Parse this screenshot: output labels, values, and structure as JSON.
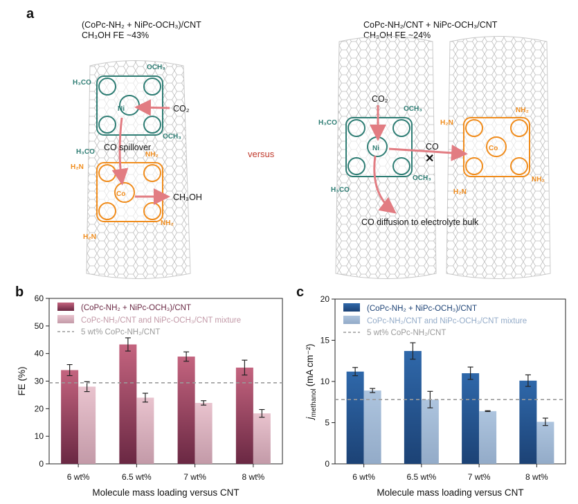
{
  "panel_a": {
    "letter": "a",
    "left_title": "(CoPc-NH₂ + NiPc-OCH₃)/CNT",
    "left_fe": "CH₃OH FE ~43%",
    "left_co2": "CO₂",
    "left_spillover": "CO spillover",
    "left_product": "CH₃OH",
    "versus": "versus",
    "right_title": "CoPc-NH₂/CNT + NiPc-OCH₃/CNT",
    "right_fe": "CH₃OH FE ~24%",
    "right_co2": "CO₂",
    "right_co": "CO",
    "right_diffusion": "CO diffusion to electrolyte bulk",
    "labels": {
      "ni": "Ni",
      "co": "Co",
      "och3": "OCH₃",
      "h3co": "H₃CO",
      "nh2": "NH₂",
      "h2n": "H₂N",
      "n": "N"
    },
    "colors": {
      "ni_molecule": "#2e7d74",
      "co_molecule": "#f08c1c",
      "arrow": "#e27c82",
      "versus": "#c0392b",
      "cnt": "#b8b8b8"
    }
  },
  "chart_data": [
    {
      "panel": "b",
      "type": "bar",
      "title": "",
      "categories": [
        "6 wt%",
        "6.5 wt%",
        "7 wt%",
        "8 wt%"
      ],
      "xlabel": "Molecule mass loading versus CNT",
      "ylabel": "FE (%)",
      "ylim": [
        0,
        60
      ],
      "yticks": [
        0,
        10,
        20,
        30,
        40,
        50,
        60
      ],
      "legend_position": "top-left",
      "series": [
        {
          "name": "(CoPc-NH₂ + NiPc-OCH₃)/CNT",
          "values": [
            34.0,
            43.3,
            38.9,
            34.9
          ],
          "errors": [
            2.0,
            2.4,
            1.7,
            2.7
          ],
          "color_top": "#c4647f",
          "color_bottom": "#6a2843"
        },
        {
          "name": "CoPc-NH₂/CNT and NiPc-OCH₃/CNT mixture",
          "values": [
            28.0,
            24.0,
            22.1,
            18.3
          ],
          "errors": [
            1.8,
            1.6,
            0.8,
            1.4
          ],
          "color_top": "#e9c3ce",
          "color_bottom": "#c39aa8"
        }
      ],
      "reference_line": {
        "name": "5 wt% CoPc-NH₂/CNT",
        "value": 29.4,
        "color": "#9a9a9a"
      }
    },
    {
      "panel": "c",
      "type": "bar",
      "title": "",
      "categories": [
        "6 wt%",
        "6.5 wt%",
        "7 wt%",
        "8 wt%"
      ],
      "xlabel": "Molecule mass loading versus CNT",
      "ylabel": "j_methanol (mA cm⁻²)",
      "ylabel_main": "j",
      "ylabel_sub": "methanol",
      "ylabel_unit": "(mA cm⁻²)",
      "ylim": [
        0,
        20
      ],
      "yticks": [
        0,
        5,
        10,
        15,
        20
      ],
      "legend_position": "top-left",
      "series": [
        {
          "name": "(CoPc-NH₂ + NiPc-OCH₃)/CNT",
          "values": [
            11.2,
            13.7,
            11.0,
            10.1
          ],
          "errors": [
            0.5,
            1.0,
            0.75,
            0.7
          ],
          "color_top": "#2f68aa",
          "color_bottom": "#1c4275"
        },
        {
          "name": "CoPc-NH₂/CNT and NiPc-OCH₃/CNT mixture",
          "values": [
            8.9,
            7.8,
            6.4,
            5.1
          ],
          "errors": [
            0.25,
            1.0,
            0.05,
            0.45
          ],
          "color_top": "#adc4de",
          "color_bottom": "#93abc8"
        }
      ],
      "reference_line": {
        "name": "5 wt% CoPc-NH₂/CNT",
        "value": 7.8,
        "color": "#9a9a9a"
      }
    }
  ]
}
